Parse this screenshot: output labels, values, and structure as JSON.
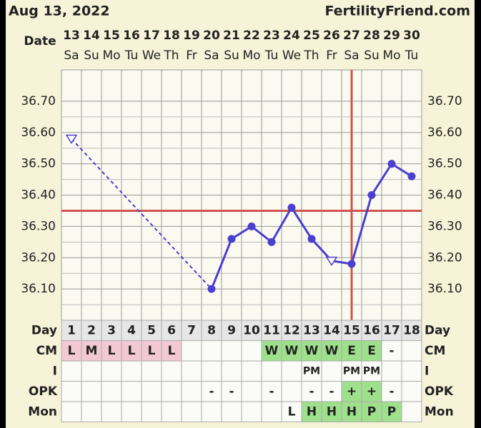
{
  "header": {
    "date": "Aug 13, 2022",
    "site": "FertilityFriend.com",
    "date_label": "Date"
  },
  "chart_data": {
    "type": "line",
    "dates": [
      13,
      14,
      15,
      16,
      17,
      18,
      19,
      20,
      21,
      22,
      23,
      24,
      25,
      26,
      27,
      28,
      29,
      30
    ],
    "weekdays": [
      "Sa",
      "Su",
      "Mo",
      "Tu",
      "We",
      "Th",
      "Fr",
      "Sa",
      "Su",
      "Mo",
      "Tu",
      "We",
      "Th",
      "Fr",
      "Sa",
      "Su",
      "Mo",
      "Tu"
    ],
    "series": [
      {
        "color": "#4a3fd0",
        "values": [
          36.58,
          null,
          null,
          null,
          null,
          null,
          null,
          36.1,
          36.26,
          36.3,
          36.25,
          36.36,
          36.26,
          36.19,
          36.18,
          36.4,
          36.5,
          36.46
        ],
        "markers": [
          "triangle",
          null,
          null,
          null,
          null,
          null,
          null,
          "circle",
          "circle",
          "circle",
          "circle",
          "circle",
          "circle",
          "triangle",
          "circle",
          "circle",
          "circle",
          "circle"
        ]
      }
    ],
    "ylim": [
      36.0,
      36.8
    ],
    "yticks": [
      {
        "value": 36.1,
        "label": "36.10"
      },
      {
        "value": 36.2,
        "label": "36.20"
      },
      {
        "value": 36.3,
        "label": "36.30"
      },
      {
        "value": 36.4,
        "label": "36.40"
      },
      {
        "value": 36.5,
        "label": "36.50"
      },
      {
        "value": 36.6,
        "label": "36.60"
      },
      {
        "value": 36.7,
        "label": "36.70"
      }
    ],
    "coverline": 36.35,
    "coverline_color": "#d0534f",
    "ovulation_day": 15,
    "grid": true
  },
  "table": {
    "rows": [
      {
        "label": "Day",
        "cells": [
          1,
          2,
          3,
          4,
          5,
          6,
          7,
          8,
          9,
          10,
          11,
          12,
          13,
          14,
          15,
          16,
          17,
          18
        ],
        "colors": [
          null,
          null,
          null,
          null,
          null,
          null,
          null,
          null,
          null,
          null,
          null,
          null,
          null,
          null,
          null,
          null,
          null,
          null
        ]
      },
      {
        "label": "CM",
        "cells": [
          "L",
          "M",
          "L",
          "L",
          "L",
          "L",
          null,
          null,
          null,
          null,
          "W",
          "W",
          "W",
          "W",
          "E",
          "E",
          "-",
          null
        ],
        "colors": [
          "#f2c8d4",
          "#f2c8d4",
          "#f2c8d4",
          "#f2c8d4",
          "#f2c8d4",
          "#f2c8d4",
          null,
          null,
          null,
          null,
          "#9fe08c",
          "#9fe08c",
          "#9fe08c",
          "#9fe08c",
          "#9fe08c",
          "#9fe08c",
          null,
          null
        ]
      },
      {
        "label": "I",
        "cells": [
          null,
          null,
          null,
          null,
          null,
          null,
          null,
          null,
          null,
          null,
          null,
          null,
          "PM",
          null,
          "PM",
          "PM",
          null,
          null
        ],
        "colors": [
          null,
          null,
          null,
          null,
          null,
          null,
          null,
          null,
          null,
          null,
          null,
          null,
          null,
          null,
          null,
          null,
          null,
          null
        ]
      },
      {
        "label": "OPK",
        "cells": [
          null,
          null,
          null,
          null,
          null,
          null,
          null,
          "-",
          "-",
          null,
          "-",
          null,
          "-",
          "-",
          "+",
          "+",
          "-",
          null
        ],
        "colors": [
          null,
          null,
          null,
          null,
          null,
          null,
          null,
          null,
          null,
          null,
          null,
          null,
          null,
          null,
          "#9fe08c",
          "#9fe08c",
          null,
          null
        ]
      },
      {
        "label": "Mon",
        "cells": [
          null,
          null,
          null,
          null,
          null,
          null,
          null,
          null,
          null,
          null,
          null,
          "L",
          "H",
          "H",
          "H",
          "P",
          "P",
          null
        ],
        "colors": [
          null,
          null,
          null,
          null,
          null,
          null,
          null,
          null,
          null,
          null,
          null,
          null,
          "#9fe08c",
          "#9fe08c",
          "#9fe08c",
          "#9fe08c",
          "#9fe08c",
          null
        ]
      }
    ]
  }
}
